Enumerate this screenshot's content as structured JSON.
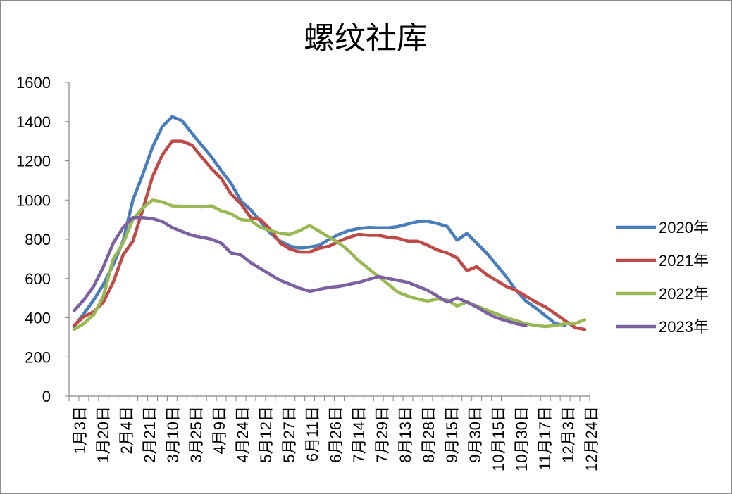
{
  "chart_data": {
    "type": "line",
    "title": "螺纹社库",
    "xlabel": "",
    "ylabel": "",
    "ylim": [
      0,
      1600
    ],
    "yticks": [
      0,
      200,
      400,
      600,
      800,
      1000,
      1200,
      1400,
      1600
    ],
    "x_tick_labels": [
      "1月3日",
      "1月20日",
      "2月4日",
      "2月21日",
      "3月10日",
      "3月25日",
      "4月9日",
      "4月24日",
      "5月12日",
      "5月27日",
      "6月11日",
      "6月26日",
      "7月14日",
      "7月29日",
      "8月13日",
      "8月28日",
      "9月15日",
      "9月30日",
      "10月15日",
      "10月30日",
      "11月17日",
      "12月3日",
      "12月24日"
    ],
    "legend_position": "right",
    "grid": false,
    "series": [
      {
        "name": "2020年",
        "color": "#4a7ebb",
        "values": [
          355,
          420,
          490,
          570,
          670,
          790,
          1000,
          1130,
          1270,
          1375,
          1425,
          1405,
          1340,
          1280,
          1220,
          1150,
          1085,
          995,
          950,
          890,
          830,
          790,
          765,
          755,
          760,
          770,
          800,
          825,
          845,
          855,
          860,
          858,
          858,
          865,
          878,
          890,
          892,
          880,
          865,
          795,
          830,
          780,
          730,
          670,
          610,
          540,
          485,
          450,
          410,
          370,
          362
        ]
      },
      {
        "name": "2021年",
        "color": "#be4b48",
        "values": [
          360,
          405,
          430,
          480,
          580,
          720,
          790,
          950,
          1120,
          1230,
          1300,
          1300,
          1280,
          1220,
          1160,
          1110,
          1030,
          980,
          910,
          900,
          850,
          780,
          750,
          735,
          735,
          755,
          765,
          790,
          810,
          825,
          820,
          820,
          810,
          805,
          790,
          790,
          770,
          745,
          730,
          705,
          640,
          660,
          620,
          590,
          560,
          540,
          510,
          480,
          455,
          420,
          385,
          350,
          340
        ]
      },
      {
        "name": "2022年",
        "color": "#98b954",
        "values": [
          340,
          370,
          415,
          510,
          700,
          780,
          900,
          960,
          1000,
          990,
          970,
          968,
          968,
          965,
          970,
          945,
          930,
          900,
          895,
          860,
          845,
          830,
          825,
          845,
          870,
          840,
          810,
          780,
          740,
          690,
          650,
          610,
          570,
          530,
          510,
          495,
          485,
          495,
          490,
          460,
          480,
          460,
          440,
          420,
          400,
          385,
          370,
          360,
          355,
          360,
          370,
          370,
          390
        ]
      },
      {
        "name": "2023年",
        "color": "#7d60a0",
        "values": [
          435,
          490,
          560,
          660,
          780,
          860,
          910,
          910,
          905,
          890,
          860,
          840,
          820,
          810,
          800,
          780,
          730,
          720,
          680,
          650,
          620,
          590,
          570,
          550,
          535,
          545,
          555,
          560,
          570,
          580,
          595,
          610,
          600,
          590,
          580,
          560,
          540,
          510,
          480,
          500,
          480,
          455,
          425,
          400,
          385,
          370,
          360
        ]
      }
    ]
  }
}
